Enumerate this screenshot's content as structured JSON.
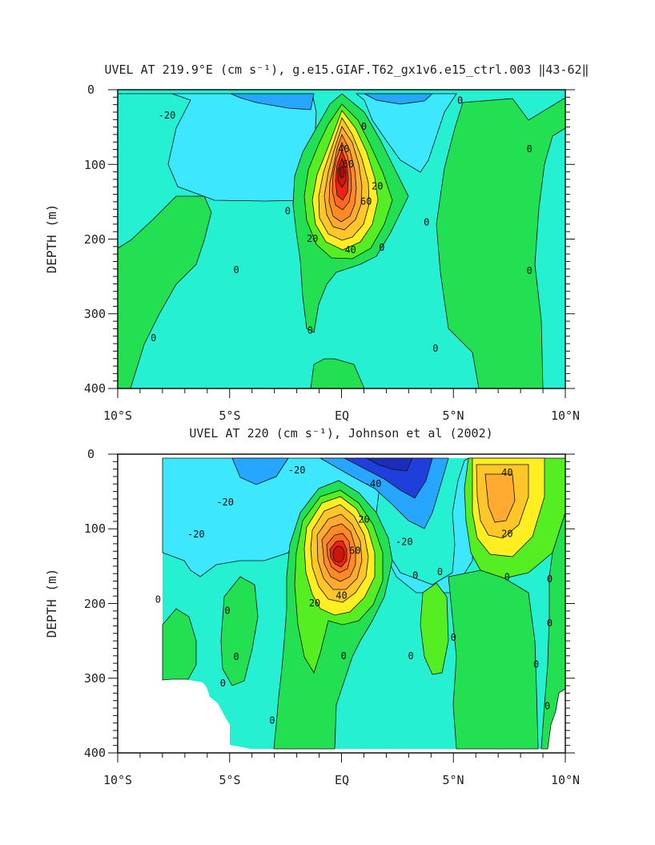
{
  "chart_data": [
    {
      "type": "heatmap",
      "title": "UVEL AT 219.9°E (cm s⁻¹), g.e15.GIAF.T62_gx1v6.e15_ctrl.003 ‖43-62‖",
      "xlabel": "",
      "ylabel": "DEPTH (m)",
      "xlim": [
        -10,
        10
      ],
      "ylim": [
        0,
        400
      ],
      "y_inverted": true,
      "x_tick_labels": [
        "10°S",
        "5°S",
        "EQ",
        "5°N",
        "10°N"
      ],
      "x_tick_values": [
        -10,
        -5,
        0,
        5,
        10
      ],
      "y_tick_labels": [
        "0",
        "100",
        "200",
        "300",
        "400"
      ],
      "y_tick_values": [
        0,
        100,
        200,
        300,
        400
      ],
      "contour_interval": 10,
      "contour_labels": [
        {
          "lat": 0.1,
          "depth": 80,
          "text": "40"
        },
        {
          "lat": 0.3,
          "depth": 100,
          "text": "60"
        },
        {
          "lat": 1.6,
          "depth": 130,
          "text": "20"
        },
        {
          "lat": 1.1,
          "depth": 150,
          "text": "60"
        },
        {
          "lat": -1.3,
          "depth": 200,
          "text": "20"
        },
        {
          "lat": 0.4,
          "depth": 215,
          "text": "40"
        },
        {
          "lat": 1.0,
          "depth": 50,
          "text": "0"
        },
        {
          "lat": -2.4,
          "depth": 163,
          "text": "0"
        },
        {
          "lat": 1.8,
          "depth": 212,
          "text": "0"
        },
        {
          "lat": 3.8,
          "depth": 178,
          "text": "0"
        },
        {
          "lat": 5.3,
          "depth": 15,
          "text": "0"
        },
        {
          "lat": 8.4,
          "depth": 80,
          "text": "0"
        },
        {
          "lat": 8.4,
          "depth": 243,
          "text": "0"
        },
        {
          "lat": -4.7,
          "depth": 242,
          "text": "0"
        },
        {
          "lat": -8.4,
          "depth": 333,
          "text": "0"
        },
        {
          "lat": -1.4,
          "depth": 323,
          "text": "0"
        },
        {
          "lat": 4.2,
          "depth": 347,
          "text": "0"
        },
        {
          "lat": -7.8,
          "depth": 35,
          "text": "-20"
        }
      ]
    },
    {
      "type": "heatmap",
      "title": "UVEL AT 220 (cm s⁻¹), Johnson et al (2002)",
      "xlabel": "",
      "ylabel": "DEPTH (m)",
      "xlim": [
        -10,
        10
      ],
      "ylim": [
        0,
        400
      ],
      "y_inverted": true,
      "x_tick_labels": [
        "10°S",
        "5°S",
        "EQ",
        "5°N",
        "10°N"
      ],
      "x_tick_values": [
        -10,
        -5,
        0,
        5,
        10
      ],
      "y_tick_labels": [
        "0",
        "100",
        "200",
        "300",
        "400"
      ],
      "y_tick_values": [
        0,
        100,
        200,
        300,
        400
      ],
      "contour_interval": 10,
      "contour_labels": [
        {
          "lat": -2.0,
          "depth": 22,
          "text": "-20"
        },
        {
          "lat": -5.2,
          "depth": 65,
          "text": "-20"
        },
        {
          "lat": -6.5,
          "depth": 108,
          "text": "-20"
        },
        {
          "lat": 1.4,
          "depth": 40,
          "text": "-40"
        },
        {
          "lat": 2.8,
          "depth": 118,
          "text": "-20"
        },
        {
          "lat": 7.4,
          "depth": 25,
          "text": "40"
        },
        {
          "lat": 7.4,
          "depth": 107,
          "text": "20"
        },
        {
          "lat": 1.0,
          "depth": 88,
          "text": "20"
        },
        {
          "lat": 0.6,
          "depth": 130,
          "text": "60"
        },
        {
          "lat": -1.2,
          "depth": 200,
          "text": "20"
        },
        {
          "lat": 0.0,
          "depth": 190,
          "text": "40"
        },
        {
          "lat": 3.3,
          "depth": 163,
          "text": "0"
        },
        {
          "lat": 4.4,
          "depth": 158,
          "text": "0"
        },
        {
          "lat": 7.4,
          "depth": 165,
          "text": "0"
        },
        {
          "lat": 9.3,
          "depth": 168,
          "text": "0"
        },
        {
          "lat": 9.3,
          "depth": 227,
          "text": "0"
        },
        {
          "lat": -8.2,
          "depth": 195,
          "text": "0"
        },
        {
          "lat": -5.1,
          "depth": 210,
          "text": "0"
        },
        {
          "lat": -4.7,
          "depth": 272,
          "text": "0"
        },
        {
          "lat": -5.3,
          "depth": 307,
          "text": "0"
        },
        {
          "lat": -3.1,
          "depth": 357,
          "text": "0"
        },
        {
          "lat": 0.1,
          "depth": 271,
          "text": "0"
        },
        {
          "lat": 3.1,
          "depth": 271,
          "text": "0"
        },
        {
          "lat": 5.0,
          "depth": 246,
          "text": "0"
        },
        {
          "lat": 8.7,
          "depth": 282,
          "text": "0"
        },
        {
          "lat": 9.2,
          "depth": 338,
          "text": "0"
        }
      ]
    }
  ],
  "colors": {
    "strong_westward": "#1f3fdc",
    "westward": "#27a6ff",
    "weak_westward": "#3de8ff",
    "near_zero_negative": "#26f0d2",
    "near_zero_positive": "#22e052",
    "weak_eastward": "#55ee22",
    "moderate_eastward": "#ffee22",
    "eastward": "#ff9922",
    "strong_eastward": "#ee2211",
    "axis": "#111111",
    "contour": "#111111"
  }
}
